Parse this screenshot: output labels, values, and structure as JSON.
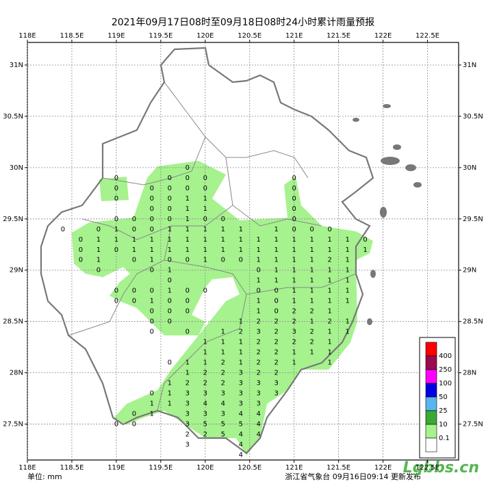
{
  "map": {
    "title": "2021年09月17日08时至09月18日08时24小时累计雨量预报",
    "xlim": [
      118,
      122.85
    ],
    "ylim": [
      27.15,
      31.22
    ],
    "xticks": [
      {
        "value": 118,
        "label": "118E"
      },
      {
        "value": 118.5,
        "label": "118.5E"
      },
      {
        "value": 119,
        "label": "119E"
      },
      {
        "value": 119.5,
        "label": "119.5E"
      },
      {
        "value": 120,
        "label": "120E"
      },
      {
        "value": 120.5,
        "label": "120.5E"
      },
      {
        "value": 121,
        "label": "121E"
      },
      {
        "value": 121.5,
        "label": "121.5E"
      },
      {
        "value": 122,
        "label": "122E"
      },
      {
        "value": 122.5,
        "label": "122.5E"
      }
    ],
    "yticks": [
      {
        "value": 27.5,
        "label": "27.5N"
      },
      {
        "value": 28,
        "label": "28N"
      },
      {
        "value": 28.5,
        "label": "28.5N"
      },
      {
        "value": 29,
        "label": "29N"
      },
      {
        "value": 29.5,
        "label": "29.5N"
      },
      {
        "value": 30,
        "label": "30N"
      },
      {
        "value": 30.5,
        "label": "30.5N"
      },
      {
        "value": 31,
        "label": "31N"
      }
    ],
    "grid": true,
    "rain": {
      "lons": [
        118.4,
        118.6,
        118.8,
        119.0,
        119.2,
        119.4,
        119.6,
        119.8,
        120.0,
        120.2,
        120.4,
        120.6,
        120.8,
        121.0,
        121.2,
        121.4,
        121.6,
        121.8
      ],
      "rows": [
        {
          "lat": 30.0,
          "values": [
            null,
            null,
            null,
            null,
            null,
            null,
            null,
            0,
            null,
            null,
            null,
            null,
            null,
            null,
            null,
            null,
            null,
            null
          ]
        },
        {
          "lat": 29.9,
          "values": [
            null,
            null,
            null,
            0,
            null,
            null,
            0,
            0,
            0,
            null,
            null,
            null,
            null,
            0,
            null,
            null,
            null,
            null
          ]
        },
        {
          "lat": 29.8,
          "values": [
            null,
            null,
            null,
            0,
            null,
            0,
            0,
            0,
            0,
            null,
            null,
            null,
            null,
            0,
            null,
            null,
            null,
            null
          ]
        },
        {
          "lat": 29.7,
          "values": [
            null,
            null,
            null,
            0,
            null,
            0,
            0,
            1,
            1,
            null,
            null,
            null,
            null,
            0,
            null,
            null,
            null,
            null
          ]
        },
        {
          "lat": 29.6,
          "values": [
            null,
            null,
            null,
            null,
            null,
            0,
            0,
            1,
            1,
            null,
            null,
            null,
            null,
            0,
            null,
            null,
            null,
            null
          ]
        },
        {
          "lat": 29.5,
          "values": [
            null,
            null,
            null,
            0,
            0,
            0,
            0,
            1,
            0,
            0,
            null,
            null,
            null,
            0,
            null,
            null,
            null,
            null
          ]
        },
        {
          "lat": 29.4,
          "values": [
            0,
            null,
            0,
            1,
            0,
            0,
            1,
            1,
            1,
            1,
            1,
            null,
            1,
            0,
            0,
            0,
            null,
            null
          ]
        },
        {
          "lat": 29.3,
          "values": [
            null,
            0,
            1,
            1,
            1,
            1,
            1,
            1,
            1,
            1,
            1,
            1,
            1,
            1,
            1,
            1,
            1,
            0
          ]
        },
        {
          "lat": 29.2,
          "values": [
            null,
            0,
            1,
            0,
            1,
            1,
            1,
            1,
            1,
            1,
            1,
            1,
            1,
            1,
            1,
            1,
            1,
            1
          ]
        },
        {
          "lat": 29.1,
          "values": [
            null,
            0,
            1,
            null,
            0,
            1,
            0,
            0,
            1,
            0,
            0,
            1,
            1,
            1,
            1,
            2,
            1,
            null
          ]
        },
        {
          "lat": 29.0,
          "values": [
            null,
            null,
            0,
            null,
            null,
            0,
            1,
            null,
            null,
            null,
            null,
            0,
            1,
            1,
            1,
            1,
            1,
            null
          ]
        },
        {
          "lat": 28.9,
          "values": [
            null,
            null,
            null,
            null,
            null,
            null,
            0,
            null,
            null,
            null,
            null,
            1,
            1,
            1,
            1,
            1,
            1,
            null
          ]
        },
        {
          "lat": 28.8,
          "values": [
            null,
            null,
            null,
            0,
            0,
            0,
            1,
            0,
            0,
            null,
            null,
            0,
            0,
            1,
            1,
            1,
            1,
            null
          ]
        },
        {
          "lat": 28.7,
          "values": [
            null,
            null,
            null,
            0,
            0,
            1,
            0,
            0,
            null,
            null,
            null,
            1,
            0,
            1,
            1,
            1,
            1,
            null
          ]
        },
        {
          "lat": 28.6,
          "values": [
            null,
            null,
            null,
            null,
            null,
            0,
            0,
            0,
            null,
            null,
            null,
            1,
            0,
            2,
            2,
            1,
            null,
            null
          ]
        },
        {
          "lat": 28.5,
          "values": [
            null,
            null,
            null,
            null,
            null,
            0,
            0,
            null,
            null,
            null,
            1,
            2,
            2,
            2,
            1,
            2,
            1,
            null
          ]
        },
        {
          "lat": 28.4,
          "values": [
            null,
            null,
            null,
            null,
            null,
            0,
            null,
            0,
            null,
            1,
            2,
            3,
            2,
            3,
            2,
            1,
            1,
            null
          ]
        },
        {
          "lat": 28.3,
          "values": [
            null,
            null,
            null,
            null,
            null,
            null,
            null,
            null,
            1,
            1,
            1,
            2,
            2,
            2,
            2,
            1,
            null,
            null
          ]
        },
        {
          "lat": 28.2,
          "values": [
            null,
            null,
            null,
            null,
            null,
            null,
            null,
            null,
            1,
            1,
            1,
            2,
            2,
            1,
            1,
            1,
            null,
            null
          ]
        },
        {
          "lat": 28.1,
          "values": [
            null,
            null,
            null,
            null,
            null,
            null,
            0,
            1,
            1,
            2,
            1,
            2,
            2,
            1,
            null,
            1,
            null,
            null
          ]
        },
        {
          "lat": 28.0,
          "values": [
            null,
            null,
            null,
            null,
            null,
            null,
            null,
            1,
            2,
            2,
            3,
            2,
            2,
            null,
            null,
            null,
            null,
            null
          ]
        },
        {
          "lat": 27.9,
          "values": [
            null,
            null,
            null,
            null,
            null,
            null,
            1,
            2,
            2,
            2,
            3,
            3,
            3,
            null,
            null,
            null,
            null,
            null
          ]
        },
        {
          "lat": 27.8,
          "values": [
            null,
            null,
            null,
            null,
            null,
            0,
            1,
            3,
            3,
            3,
            3,
            3,
            3,
            null,
            null,
            null,
            null,
            null
          ]
        },
        {
          "lat": 27.7,
          "values": [
            null,
            null,
            null,
            null,
            null,
            1,
            1,
            3,
            4,
            4,
            3,
            3,
            null,
            null,
            null,
            null,
            null,
            null
          ]
        },
        {
          "lat": 27.6,
          "values": [
            null,
            null,
            null,
            null,
            0,
            1,
            null,
            3,
            3,
            3,
            4,
            4,
            null,
            null,
            null,
            null,
            null,
            null
          ]
        },
        {
          "lat": 27.5,
          "values": [
            null,
            null,
            null,
            0,
            0,
            null,
            null,
            3,
            5,
            5,
            5,
            4,
            null,
            null,
            null,
            null,
            null,
            null
          ]
        },
        {
          "lat": 27.4,
          "values": [
            null,
            null,
            null,
            null,
            null,
            null,
            null,
            2,
            2,
            5,
            4,
            4,
            null,
            null,
            null,
            null,
            null,
            null
          ]
        },
        {
          "lat": 27.3,
          "values": [
            null,
            null,
            null,
            null,
            null,
            null,
            null,
            3,
            null,
            null,
            4,
            null,
            null,
            null,
            null,
            null,
            null,
            null
          ]
        },
        {
          "lat": 27.2,
          "values": [
            null,
            null,
            null,
            null,
            null,
            null,
            null,
            null,
            null,
            null,
            4,
            null,
            null,
            null,
            null,
            null,
            null,
            null
          ]
        }
      ]
    },
    "legend": {
      "colors": [
        "#ff0000",
        "#9c0a4e",
        "#ff00ff",
        "#0000e0",
        "#5ab4f0",
        "#3aaa35",
        "#a6f28e",
        "#ffffff"
      ],
      "labels": [
        400,
        250,
        100,
        50,
        25,
        10,
        0.1
      ]
    },
    "unit": "单位: mm",
    "issuer": "浙江省气象台 09月16日09:14 更新发布",
    "watermark": "Lgbbs.cn"
  }
}
